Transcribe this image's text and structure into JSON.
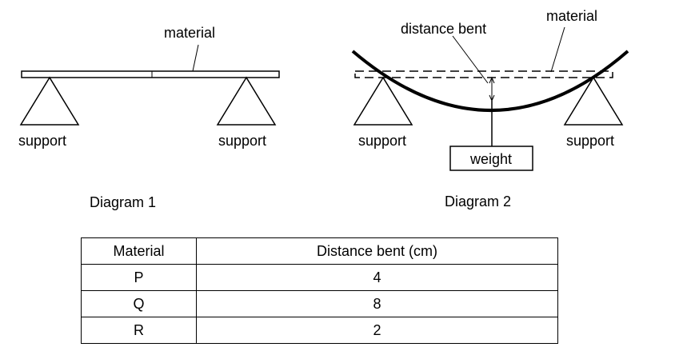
{
  "diagram1": {
    "material_label": "material",
    "support_left": "support",
    "support_right": "support",
    "caption": "Diagram 1"
  },
  "diagram2": {
    "material_label": "material",
    "distance_label": "distance bent",
    "weight_label": "weight",
    "support_left": "support",
    "support_right": "support",
    "caption": "Diagram 2"
  },
  "table": {
    "headers": [
      "Material",
      "Distance bent (cm)"
    ],
    "rows": [
      {
        "material": "P",
        "distance": "4"
      },
      {
        "material": "Q",
        "distance": "8"
      },
      {
        "material": "R",
        "distance": "2"
      }
    ]
  }
}
